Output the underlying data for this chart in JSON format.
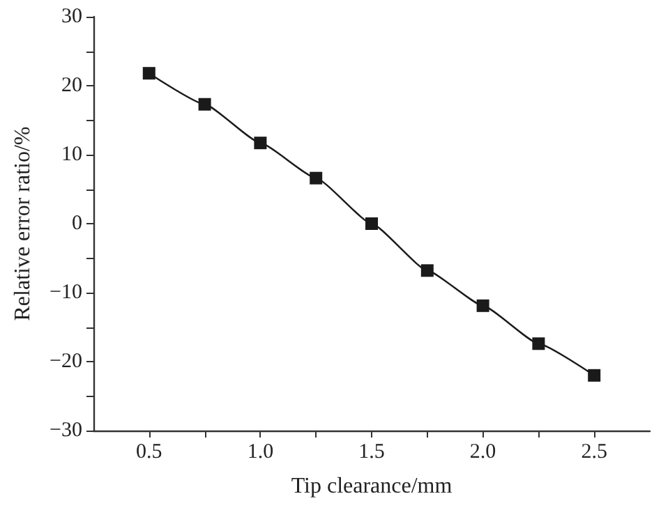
{
  "chart_data": {
    "type": "line",
    "xlabel": "Tip clearance/mm",
    "ylabel": "Relative error ratio/%",
    "x": [
      0.5,
      0.75,
      1.0,
      1.25,
      1.5,
      1.75,
      2.0,
      2.25,
      2.5
    ],
    "series": [
      {
        "color": "#1a1a1a",
        "values": [
          21.8,
          17.3,
          11.7,
          6.6,
          0,
          -6.8,
          -11.9,
          -17.4,
          -22.0
        ]
      }
    ],
    "xlim": [
      0.25,
      2.75
    ],
    "xticks": [
      0.5,
      {
        "value": 0.75,
        "label": null
      },
      {
        "value": 1,
        "label": "1.0"
      },
      {
        "value": 1.25,
        "label": null
      },
      1.5,
      {
        "value": 1.75,
        "label": null
      },
      {
        "value": 2,
        "label": "2.0"
      },
      {
        "value": 2.25,
        "label": null
      },
      2.5
    ],
    "ylim": [
      -30,
      30
    ],
    "yticks": [
      {
        "value": -30,
        "label": "−30"
      },
      {
        "value": -25,
        "label": null
      },
      {
        "value": -20,
        "label": "−20"
      },
      {
        "value": -15,
        "label": null
      },
      {
        "value": -10,
        "label": "−10"
      },
      {
        "value": -5,
        "label": null
      },
      0,
      {
        "value": 5,
        "label": null
      },
      10,
      {
        "value": 15,
        "label": null
      },
      20,
      {
        "value": 25,
        "label": null
      },
      30
    ],
    "marker": "square",
    "line_style": "solid"
  }
}
